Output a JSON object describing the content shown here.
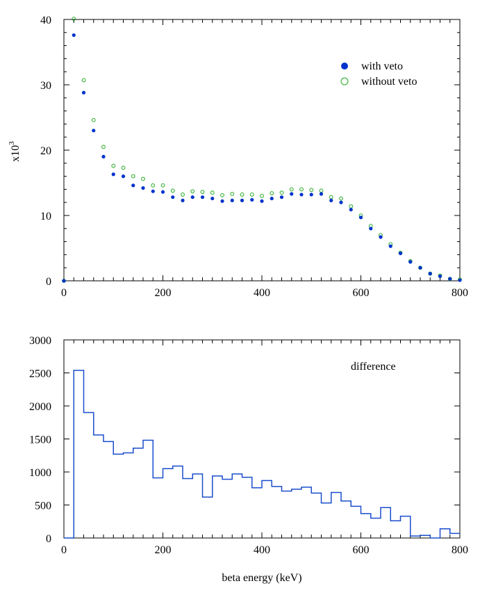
{
  "chart_data": [
    {
      "type": "scatter",
      "ylabel_base": "x10",
      "ylabel_exp": "3",
      "xlim": [
        0,
        800
      ],
      "ylim": [
        0,
        40
      ],
      "x_ticks": [
        0,
        200,
        400,
        600,
        800
      ],
      "y_ticks": [
        0,
        10,
        20,
        30,
        40
      ],
      "legend_position": "top-right",
      "series": [
        {
          "name": "with veto",
          "marker": "filled-circle",
          "color": "#0033cc",
          "x": [
            0,
            20,
            40,
            60,
            80,
            100,
            120,
            140,
            160,
            180,
            200,
            220,
            240,
            260,
            280,
            300,
            320,
            340,
            360,
            380,
            400,
            420,
            440,
            460,
            480,
            500,
            520,
            540,
            560,
            580,
            600,
            620,
            640,
            660,
            680,
            700,
            720,
            740,
            760,
            780,
            800
          ],
          "y": [
            0,
            37.6,
            28.8,
            23.0,
            19.0,
            16.3,
            16.0,
            14.6,
            14.2,
            13.7,
            13.6,
            12.8,
            12.3,
            12.8,
            12.8,
            12.6,
            12.2,
            12.3,
            12.3,
            12.4,
            12.2,
            12.6,
            12.8,
            13.3,
            13.2,
            13.2,
            13.3,
            12.3,
            12.0,
            10.9,
            9.7,
            8.0,
            6.7,
            5.3,
            4.2,
            2.9,
            2.0,
            1.1,
            0.7,
            0.3,
            0.1
          ]
        },
        {
          "name": "without veto",
          "marker": "open-circle",
          "color": "#22aa22",
          "x": [
            0,
            20,
            40,
            60,
            80,
            100,
            120,
            140,
            160,
            180,
            200,
            220,
            240,
            260,
            280,
            300,
            320,
            340,
            360,
            380,
            400,
            420,
            440,
            460,
            480,
            500,
            520,
            540,
            560,
            580,
            600,
            620,
            640,
            660,
            680,
            700,
            720,
            740,
            760,
            780,
            800
          ],
          "y": [
            0,
            40.1,
            30.7,
            24.6,
            20.5,
            17.6,
            17.3,
            16.0,
            15.6,
            14.6,
            14.6,
            13.8,
            13.2,
            13.7,
            13.6,
            13.5,
            13.1,
            13.3,
            13.2,
            13.2,
            13.0,
            13.4,
            13.5,
            14.0,
            14.0,
            13.9,
            13.8,
            12.8,
            12.6,
            11.4,
            10.0,
            8.4,
            7.0,
            5.6,
            4.3,
            3.0,
            2.0,
            1.1,
            0.8,
            0.3,
            0.2
          ]
        }
      ]
    },
    {
      "type": "step",
      "annotation": "difference",
      "xlabel": "beta energy (keV)",
      "xlim": [
        0,
        800
      ],
      "ylim": [
        0,
        3000
      ],
      "x_ticks": [
        0,
        200,
        400,
        600,
        800
      ],
      "y_ticks": [
        0,
        500,
        1000,
        1500,
        2000,
        2500,
        3000
      ],
      "color": "#1a4dcc",
      "bin_edges": [
        0,
        20,
        40,
        60,
        80,
        100,
        120,
        140,
        160,
        180,
        200,
        220,
        240,
        260,
        280,
        300,
        320,
        340,
        360,
        380,
        400,
        420,
        440,
        460,
        480,
        500,
        520,
        540,
        560,
        580,
        600,
        620,
        640,
        660,
        680,
        700,
        720,
        740,
        760,
        780,
        800
      ],
      "values": [
        0,
        2540,
        1900,
        1560,
        1460,
        1270,
        1290,
        1360,
        1480,
        910,
        1050,
        1090,
        900,
        970,
        620,
        940,
        890,
        970,
        920,
        760,
        870,
        780,
        710,
        740,
        770,
        680,
        530,
        690,
        560,
        480,
        370,
        300,
        460,
        260,
        330,
        30,
        40,
        0,
        140,
        70
      ]
    }
  ]
}
